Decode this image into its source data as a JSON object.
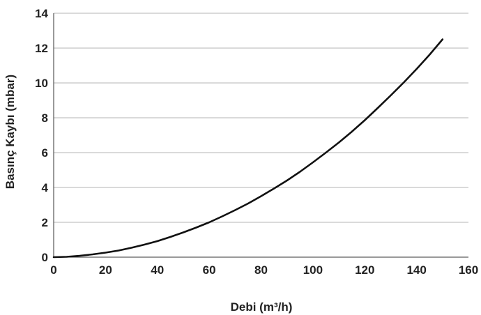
{
  "chart_data": {
    "type": "line",
    "title": "",
    "xlabel": "Debi (m³/h)",
    "ylabel": "Basınç Kaybı (mbar)",
    "xlim": [
      0,
      160
    ],
    "ylim": [
      0,
      14
    ],
    "x_ticks": [
      "0",
      "20",
      "40",
      "60",
      "80",
      "100",
      "120",
      "140",
      "160"
    ],
    "y_ticks": [
      "0",
      "2",
      "4",
      "6",
      "8",
      "10",
      "12",
      "14"
    ],
    "grid": "horizontal",
    "legend": "none",
    "series": [
      {
        "x": [
          0,
          5,
          10,
          15,
          20,
          25,
          30,
          35,
          40,
          45,
          50,
          55,
          60,
          65,
          70,
          75,
          80,
          85,
          90,
          95,
          100,
          105,
          110,
          115,
          120,
          125,
          130,
          135,
          140,
          145,
          150
        ],
        "y": [
          0,
          0.02,
          0.08,
          0.16,
          0.26,
          0.38,
          0.54,
          0.72,
          0.92,
          1.16,
          1.42,
          1.7,
          2.0,
          2.34,
          2.7,
          3.08,
          3.5,
          3.94,
          4.4,
          4.9,
          5.44,
          6.0,
          6.58,
          7.2,
          7.86,
          8.56,
          9.28,
          10.02,
          10.8,
          11.62,
          12.5
        ],
        "color": "#111111"
      }
    ]
  }
}
